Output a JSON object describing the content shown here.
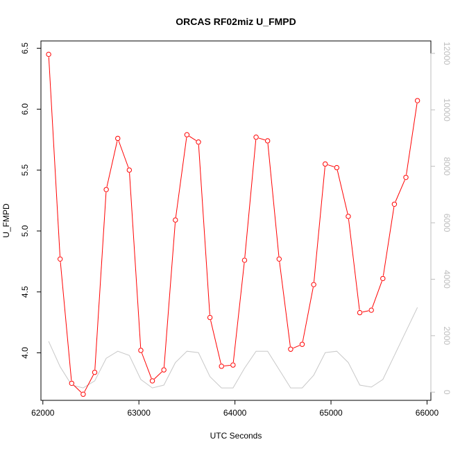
{
  "chart_data": {
    "type": "line",
    "title": "ORCAS RF02miz U_FMPD",
    "xlabel": "UTC Seconds",
    "ylabel": "U_FMPD",
    "xlim": [
      61980,
      66040
    ],
    "ylim": [
      3.61,
      6.56
    ],
    "y2lim": [
      -290,
      12440
    ],
    "x_ticks": [
      62000,
      63000,
      64000,
      65000,
      66000
    ],
    "y_ticks": [
      4.0,
      4.5,
      5.0,
      5.5,
      6.0,
      6.5
    ],
    "y_tick_labels": [
      "4.0",
      "4.5",
      "5.0",
      "5.5",
      "6.0",
      "6.5"
    ],
    "y2_ticks": [
      0,
      2000,
      4000,
      6000,
      8000,
      10000,
      12000
    ],
    "grid": false,
    "series": [
      {
        "axis": "left",
        "color": "#ff0000",
        "marker": "open-circle",
        "x": [
          62060,
          62180,
          62300,
          62420,
          62540,
          62660,
          62780,
          62900,
          63020,
          63140,
          63260,
          63380,
          63500,
          63620,
          63740,
          63860,
          63980,
          64100,
          64220,
          64340,
          64460,
          64580,
          64700,
          64820,
          64940,
          65060,
          65180,
          65300,
          65420,
          65540,
          65660,
          65780,
          65900
        ],
        "values": [
          6.45,
          4.77,
          3.75,
          3.66,
          3.84,
          5.34,
          5.76,
          5.5,
          4.02,
          3.77,
          3.86,
          5.09,
          5.79,
          5.73,
          4.29,
          3.89,
          3.9,
          4.76,
          5.77,
          5.74,
          4.77,
          4.03,
          4.07,
          4.56,
          5.55,
          5.52,
          5.12,
          4.33,
          4.35,
          4.61,
          5.22,
          5.44,
          6.07
        ]
      },
      {
        "axis": "right",
        "color": "#c8c8c8",
        "marker": "none",
        "x": [
          62060,
          62180,
          62300,
          62420,
          62540,
          62660,
          62780,
          62900,
          63020,
          63140,
          63260,
          63380,
          63500,
          63620,
          63740,
          63860,
          63980,
          64100,
          64220,
          64340,
          64460,
          64580,
          64700,
          64820,
          64940,
          65060,
          65180,
          65300,
          65420,
          65540,
          65660,
          65780,
          65900
        ],
        "values": [
          1800,
          900,
          250,
          150,
          400,
          1200,
          1450,
          1300,
          450,
          150,
          250,
          1050,
          1450,
          1400,
          550,
          150,
          150,
          850,
          1450,
          1450,
          800,
          150,
          150,
          600,
          1400,
          1450,
          1050,
          250,
          180,
          450,
          1300,
          2150,
          3000
        ]
      }
    ]
  }
}
